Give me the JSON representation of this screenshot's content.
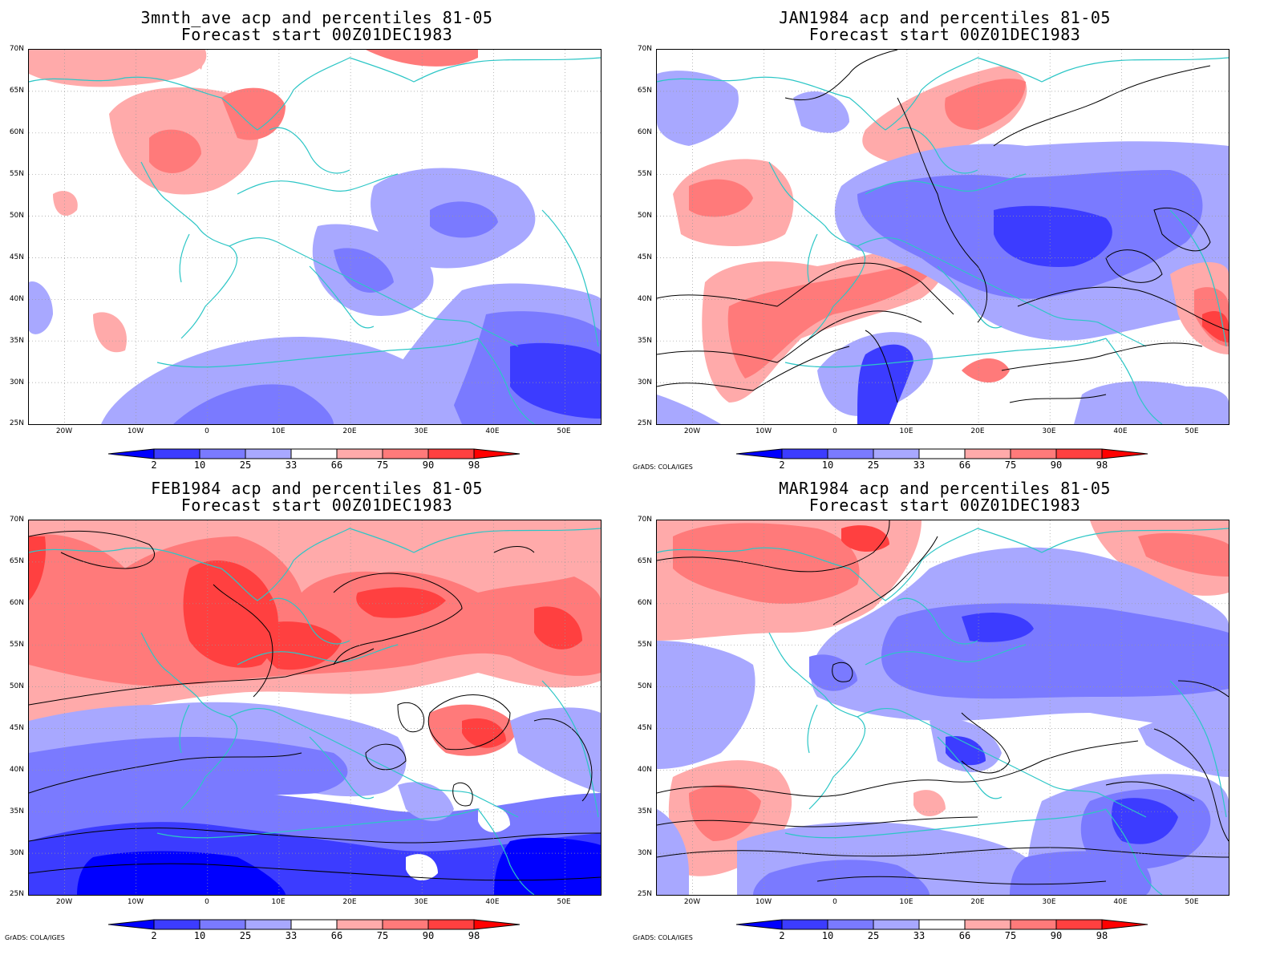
{
  "panels": [
    {
      "id": "p1",
      "title1": "3mnth_ave acp and percentiles 81-05",
      "title2": "Forecast start 00Z01DEC1983",
      "credit": ""
    },
    {
      "id": "p2",
      "title1": "JAN1984 acp and percentiles 81-05",
      "title2": "Forecast start 00Z01DEC1983",
      "credit": "GrADS: COLA/IGES"
    },
    {
      "id": "p3",
      "title1": "FEB1984 acp and percentiles 81-05",
      "title2": "Forecast start 00Z01DEC1983",
      "credit": "GrADS: COLA/IGES"
    },
    {
      "id": "p4",
      "title1": "MAR1984 acp and percentiles 81-05",
      "title2": "Forecast start 00Z01DEC1983",
      "credit": "GrADS: COLA/IGES"
    }
  ],
  "lat_labels": [
    "70N",
    "65N",
    "60N",
    "55N",
    "50N",
    "45N",
    "40N",
    "35N",
    "30N",
    "25N"
  ],
  "lon_labels": [
    "20W",
    "10W",
    "0",
    "10E",
    "20E",
    "30E",
    "40E",
    "50E"
  ],
  "colorbar": {
    "labels": [
      "2",
      "10",
      "25",
      "33",
      "66",
      "75",
      "90",
      "98"
    ],
    "colors": [
      "#0000ff",
      "#3c3cff",
      "#7a7aff",
      "#a8a8ff",
      "#ffffff",
      "#ffaaaa",
      "#ff7a7a",
      "#ff4040",
      "#ff0000"
    ]
  },
  "colors": {
    "coast": "#2cc6c6",
    "contour": "#000000",
    "grid": "#999999"
  }
}
